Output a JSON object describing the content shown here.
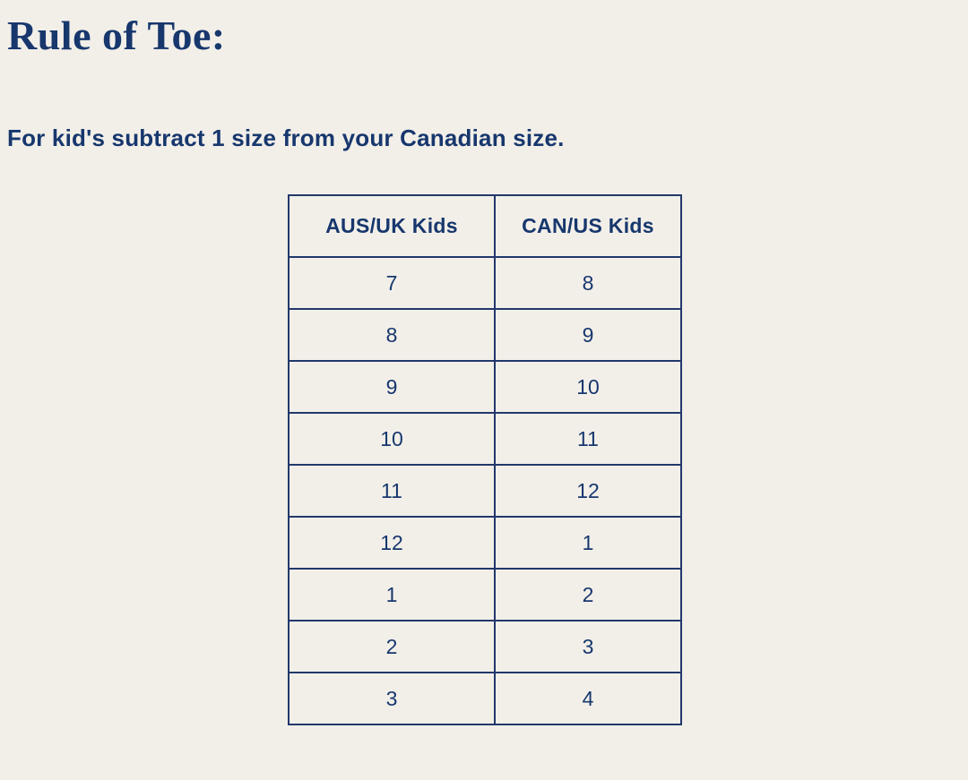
{
  "page": {
    "title": "Rule of Toe:",
    "subtitle": "For kid's subtract 1 size from your Canadian size.",
    "background_color": "#f2efe9",
    "text_color": "#17376d"
  },
  "table": {
    "border_color": "#22386b",
    "columns": [
      "AUS/UK Kids",
      "CAN/US Kids"
    ],
    "rows": [
      [
        "7",
        "8"
      ],
      [
        "8",
        "9"
      ],
      [
        "9",
        "10"
      ],
      [
        "10",
        "11"
      ],
      [
        "11",
        "12"
      ],
      [
        "12",
        "1"
      ],
      [
        "1",
        "2"
      ],
      [
        "2",
        "3"
      ],
      [
        "3",
        "4"
      ]
    ]
  }
}
